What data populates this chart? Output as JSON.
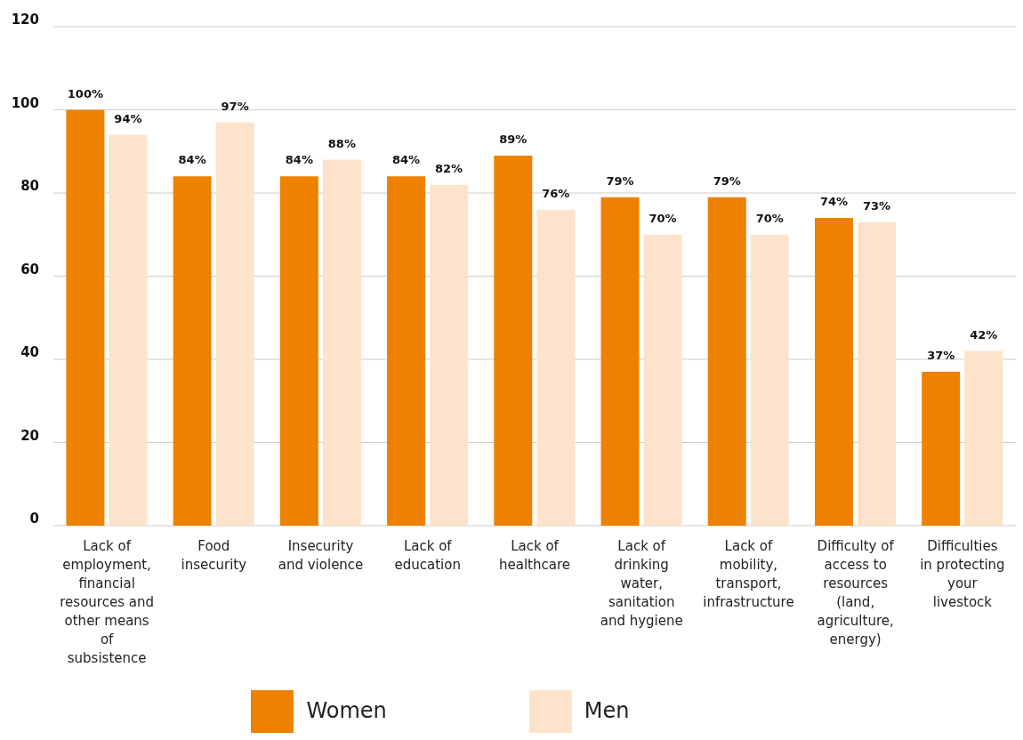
{
  "chart_data": {
    "type": "bar",
    "categories": [
      "Lack of employment, financial resources and other means of subsistence",
      "Food insecurity",
      "Insecurity and violence",
      "Lack of education",
      "Lack of healthcare",
      "Lack of drinking water, sanitation and hygiene",
      "Lack of mobility, transport, infrastructure",
      "Difficulty of access to resources (land, agriculture, energy)",
      "Difficulties in protecting your livestock"
    ],
    "series": [
      {
        "name": "Women",
        "color": "#ee8200",
        "values": [
          100,
          84,
          84,
          84,
          89,
          79,
          79,
          74,
          37
        ],
        "value_labels": [
          "100%",
          "84%",
          "84%",
          "84%",
          "89%",
          "79%",
          "79%",
          "74%",
          "37%"
        ]
      },
      {
        "name": "Men",
        "color": "#fde3cb",
        "values": [
          94,
          97,
          88,
          82,
          76,
          70,
          70,
          73,
          42
        ],
        "value_labels": [
          "94%",
          "97%",
          "88%",
          "82%",
          "76%",
          "70%",
          "70%",
          "73%",
          "42%"
        ]
      }
    ],
    "ylim": [
      0,
      120
    ],
    "yticks": [
      0,
      20,
      40,
      60,
      80,
      100,
      120
    ],
    "grid": "y",
    "legend": "bottom"
  }
}
